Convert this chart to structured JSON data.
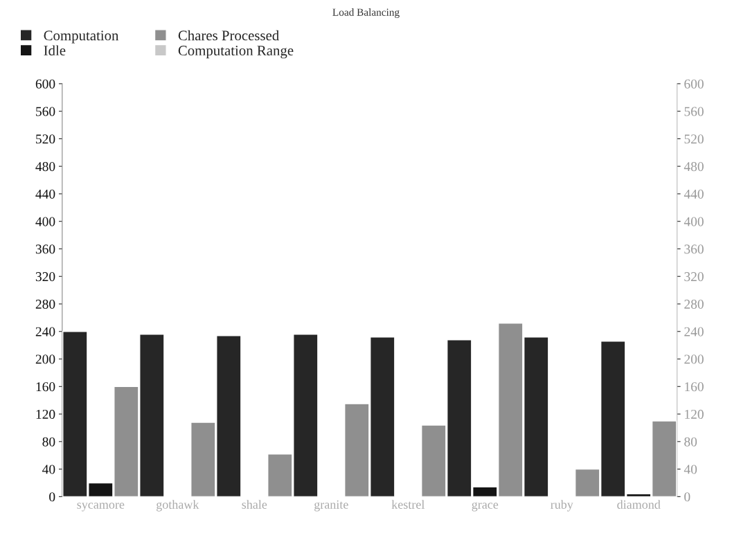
{
  "chart_data": {
    "type": "bar",
    "title": "Load Balancing",
    "categories": [
      "sycamore",
      "gothawk",
      "shale",
      "granite",
      "kestrel",
      "grace",
      "ruby",
      "diamond"
    ],
    "series": [
      {
        "name": "Computation",
        "color": "#262626",
        "values": [
          240,
          236,
          234,
          236,
          232,
          228,
          232,
          226
        ]
      },
      {
        "name": "Idle",
        "color": "#141414",
        "values": [
          20,
          null,
          null,
          null,
          null,
          14,
          null,
          4
        ]
      },
      {
        "name": "Chares Processed",
        "color": "#8f8f8f",
        "values": [
          160,
          108,
          62,
          135,
          104,
          252,
          40,
          110
        ]
      },
      {
        "name": "Computation Range",
        "color": "#c8c8c8",
        "values": [
          null,
          null,
          null,
          null,
          null,
          null,
          null,
          null
        ]
      }
    ],
    "ylim": [
      0,
      600
    ],
    "yticks": [
      0,
      40,
      80,
      120,
      160,
      200,
      240,
      280,
      320,
      360,
      400,
      440,
      480,
      520,
      560,
      600
    ],
    "y2lim": [
      0,
      600
    ],
    "y2ticks": [
      0,
      40,
      80,
      120,
      160,
      200,
      240,
      280,
      320,
      360,
      400,
      440,
      480,
      520,
      560,
      600
    ],
    "grid": false,
    "legend": "top left"
  }
}
